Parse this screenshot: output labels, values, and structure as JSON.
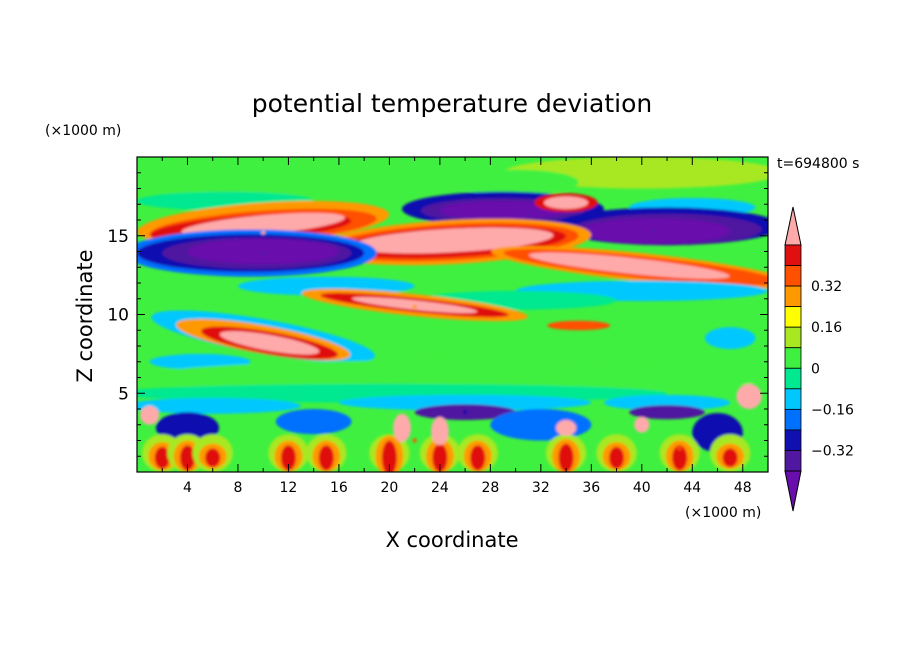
{
  "chart_data": {
    "type": "heatmap",
    "title": "potential temperature deviation",
    "xlabel": "X coordinate",
    "ylabel": "Z coordinate",
    "x_unit": "(×1000 m)",
    "y_unit": "(×1000 m)",
    "time_label": "t=694800 s",
    "xlim": [
      0,
      50
    ],
    "ylim": [
      0,
      20
    ],
    "x_ticks": [
      "4",
      "8",
      "12",
      "16",
      "20",
      "24",
      "28",
      "32",
      "36",
      "40",
      "44",
      "48"
    ],
    "y_ticks": [
      "5",
      "10",
      "15"
    ],
    "colorbar": {
      "levels": [
        -0.4,
        -0.32,
        -0.24,
        -0.16,
        -0.08,
        0,
        0.08,
        0.16,
        0.24,
        0.32,
        0.4
      ],
      "labels": [
        "0.32",
        "0.16",
        "0",
        "−0.16",
        "−0.32"
      ],
      "colors": [
        "#6a0dad",
        "#5018a0",
        "#1010b0",
        "#0070ff",
        "#00c8ff",
        "#00e890",
        "#40f040",
        "#a8e820",
        "#ffff00",
        "#ff9900",
        "#ff5000",
        "#e01010",
        "#ffaaaa"
      ]
    },
    "features": [
      {
        "x": 10,
        "z": 15.2,
        "value": 0.4
      },
      {
        "x": 25,
        "z": 14.8,
        "value": 0.4
      },
      {
        "x": 31,
        "z": 16.3,
        "value": -0.4
      },
      {
        "x": 41,
        "z": 15.3,
        "value": -0.4
      },
      {
        "x": 10,
        "z": 13.9,
        "value": -0.4
      },
      {
        "x": 39,
        "z": 13.2,
        "value": 0.4
      },
      {
        "x": 10,
        "z": 8.0,
        "value": 0.4
      },
      {
        "x": 22,
        "z": 10.5,
        "value": 0.3
      },
      {
        "x": 22,
        "z": 2.0,
        "value": 0.32
      },
      {
        "x": 43,
        "z": 1.5,
        "value": 0.32
      },
      {
        "x": 26,
        "z": 3.8,
        "value": -0.32
      }
    ]
  }
}
